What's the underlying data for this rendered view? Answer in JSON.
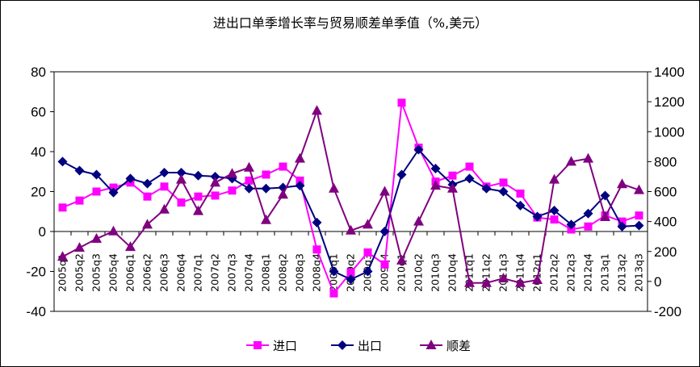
{
  "chart_data": {
    "type": "line",
    "title": "进出口单季增长率与贸易顺差单季值（%,美元）",
    "categories": [
      "2005q1",
      "2005q2",
      "2005q3",
      "2005q4",
      "2006q1",
      "2006q2",
      "2006q3",
      "2006q4",
      "2007q1",
      "2007q2",
      "2007q3",
      "2007q4",
      "2008q1",
      "2008q2",
      "2008q3",
      "2008q4",
      "2009q1",
      "2009q2",
      "2009q3",
      "2009q4",
      "2010q1",
      "2010q2",
      "2010q3",
      "2010q4",
      "2011q1",
      "2011q2",
      "2011q3",
      "2011q4",
      "2012q1",
      "2012q2",
      "2012q3",
      "2012q4",
      "2013q1",
      "2013q2",
      "2013q3"
    ],
    "series": [
      {
        "name": "进口",
        "axis": "left",
        "color": "#FF00FF",
        "marker": "square",
        "values": [
          12,
          15.5,
          20,
          22,
          24.5,
          17.5,
          22.5,
          14.5,
          17.5,
          18,
          20.5,
          25.5,
          28.5,
          32.5,
          25.5,
          -9,
          -31,
          -20.5,
          -10.5,
          -16.5,
          64.5,
          42,
          25,
          28,
          32.5,
          22.5,
          24.5,
          19,
          7,
          6,
          1,
          2.5,
          8,
          5,
          8
        ]
      },
      {
        "name": "出口",
        "axis": "left",
        "color": "#000080",
        "marker": "diamond",
        "values": [
          35,
          30.5,
          28.5,
          19.5,
          26.5,
          24,
          29.5,
          29.5,
          28,
          27.5,
          26.5,
          21.5,
          21.5,
          22,
          23,
          4.5,
          -20,
          -24,
          -20,
          0,
          28.5,
          41,
          31.5,
          23.5,
          26.5,
          21.5,
          20,
          13,
          7.5,
          10.5,
          3.5,
          9,
          18,
          2.5,
          3
        ]
      },
      {
        "name": "顺差",
        "axis": "right",
        "color": "#800080",
        "marker": "triangle",
        "values": [
          165,
          225,
          285,
          335,
          230,
          380,
          480,
          680,
          470,
          660,
          720,
          760,
          410,
          580,
          820,
          1140,
          620,
          340,
          380,
          600,
          140,
          400,
          640,
          620,
          -10,
          -10,
          20,
          -10,
          10,
          680,
          800,
          820,
          430,
          650,
          610
        ]
      }
    ],
    "yleft": {
      "range": [
        -40,
        80
      ],
      "ticks": [
        "-40",
        "-20",
        "0",
        "20",
        "40",
        "60",
        "80"
      ]
    },
    "yright": {
      "range": [
        -200,
        1400
      ],
      "ticks": [
        "-200",
        "0",
        "200",
        "400",
        "600",
        "800",
        "1000",
        "1200",
        "1400"
      ]
    },
    "grid": false,
    "legend_position": "bottom"
  }
}
